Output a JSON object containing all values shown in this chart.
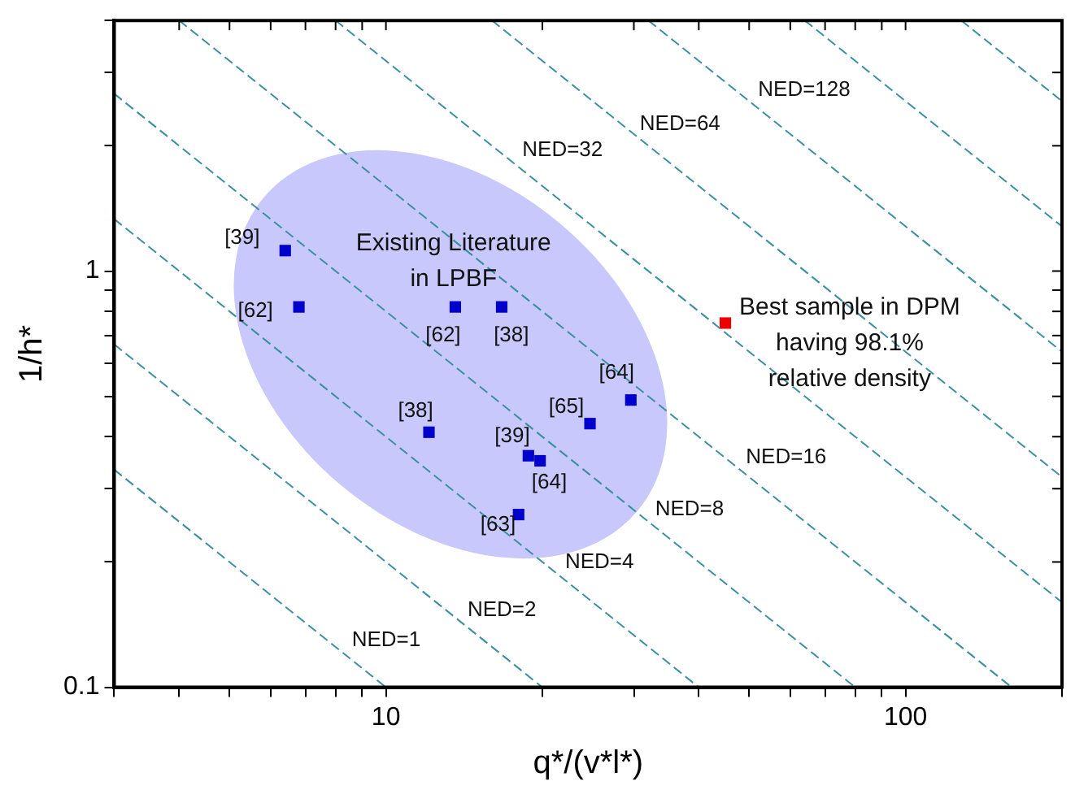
{
  "chart_data": {
    "type": "scatter",
    "xlabel": "q*/(v*l*)",
    "ylabel": "1/h*",
    "log": "xy",
    "xlim": [
      3,
      200
    ],
    "ylim": [
      0.1,
      4
    ],
    "xticks": [
      {
        "value": 3,
        "label": null
      },
      {
        "value": 4,
        "label": null
      },
      {
        "value": 5,
        "label": null
      },
      {
        "value": 6,
        "label": null
      },
      {
        "value": 7,
        "label": null
      },
      {
        "value": 8,
        "label": null
      },
      {
        "value": 9,
        "label": null
      },
      10,
      {
        "value": 20,
        "label": null
      },
      {
        "value": 30,
        "label": null
      },
      {
        "value": 40,
        "label": null
      },
      {
        "value": 50,
        "label": null
      },
      {
        "value": 60,
        "label": null
      },
      {
        "value": 70,
        "label": null
      },
      {
        "value": 80,
        "label": null
      },
      {
        "value": 90,
        "label": null
      },
      100,
      {
        "value": 200,
        "label": null
      }
    ],
    "yticks": [
      0.1,
      {
        "value": 0.2,
        "label": null
      },
      {
        "value": 0.3,
        "label": null
      },
      {
        "value": 0.4,
        "label": null
      },
      {
        "value": 0.5,
        "label": null
      },
      {
        "value": 0.6,
        "label": null
      },
      {
        "value": 0.7,
        "label": null
      },
      {
        "value": 0.8,
        "label": null
      },
      {
        "value": 0.9,
        "label": null
      },
      1,
      {
        "value": 2,
        "label": null
      },
      {
        "value": 3,
        "label": null
      },
      {
        "value": 4,
        "label": null
      }
    ],
    "grid": false,
    "legend": false,
    "marker": "square",
    "series": [
      {
        "type": "line",
        "color": "#3a8fa0",
        "line_style": "dashed",
        "marker": "none",
        "x": [
          3,
          10
        ],
        "values": [
          0.3333,
          0.1
        ]
      },
      {
        "type": "line",
        "color": "#3a8fa0",
        "line_style": "dashed",
        "marker": "none",
        "x": [
          3,
          20
        ],
        "values": [
          0.6667,
          0.1
        ]
      },
      {
        "type": "line",
        "color": "#3a8fa0",
        "line_style": "dashed",
        "marker": "none",
        "x": [
          3,
          40
        ],
        "values": [
          1.3333,
          0.1
        ]
      },
      {
        "type": "line",
        "color": "#3a8fa0",
        "line_style": "dashed",
        "marker": "none",
        "x": [
          3,
          80
        ],
        "values": [
          2.6667,
          0.1
        ]
      },
      {
        "type": "line",
        "color": "#3a8fa0",
        "line_style": "dashed",
        "marker": "none",
        "x": [
          4,
          160
        ],
        "values": [
          4,
          0.1
        ]
      },
      {
        "type": "line",
        "color": "#3a8fa0",
        "line_style": "dashed",
        "marker": "none",
        "x": [
          8,
          200
        ],
        "values": [
          4,
          0.16
        ]
      },
      {
        "type": "line",
        "color": "#3a8fa0",
        "line_style": "dashed",
        "marker": "none",
        "x": [
          16,
          200
        ],
        "values": [
          4,
          0.32
        ]
      },
      {
        "type": "line",
        "color": "#3a8fa0",
        "line_style": "dashed",
        "marker": "none",
        "x": [
          32,
          200
        ],
        "values": [
          4,
          0.64
        ]
      },
      {
        "type": "line",
        "color": "#3a8fa0",
        "line_style": "dashed",
        "marker": "none",
        "x": [
          64,
          200
        ],
        "values": [
          4,
          1.28
        ]
      },
      {
        "type": "line",
        "color": "#3a8fa0",
        "line_style": "dashed",
        "marker": "none",
        "x": [
          128,
          200
        ],
        "values": [
          4,
          2.56
        ]
      },
      {
        "color": "#0000cc",
        "x": [
          6.4,
          6.8,
          13.6,
          16.7,
          29.6,
          24.7,
          12.1,
          18.8,
          19.8,
          18.0
        ],
        "values": [
          1.12,
          0.82,
          0.82,
          0.82,
          0.49,
          0.43,
          0.41,
          0.36,
          0.35,
          0.26
        ]
      },
      {
        "color": "#ee0000",
        "x": [
          45
        ],
        "values": [
          0.75
        ]
      }
    ],
    "annotations": [
      "NED=1",
      "NED=2",
      "NED=4",
      "NED=8",
      "NED=16",
      "NED=32",
      "NED=64",
      "NED=128",
      "[39]",
      "[62]",
      "[62]",
      "[38]",
      "[64]",
      "[65]",
      "[38]",
      "[39]",
      "[64]",
      "[63]",
      "Existing Literature\nin LPBF",
      "Best sample in DPM\nhaving 98.1%\nrelative density"
    ]
  }
}
